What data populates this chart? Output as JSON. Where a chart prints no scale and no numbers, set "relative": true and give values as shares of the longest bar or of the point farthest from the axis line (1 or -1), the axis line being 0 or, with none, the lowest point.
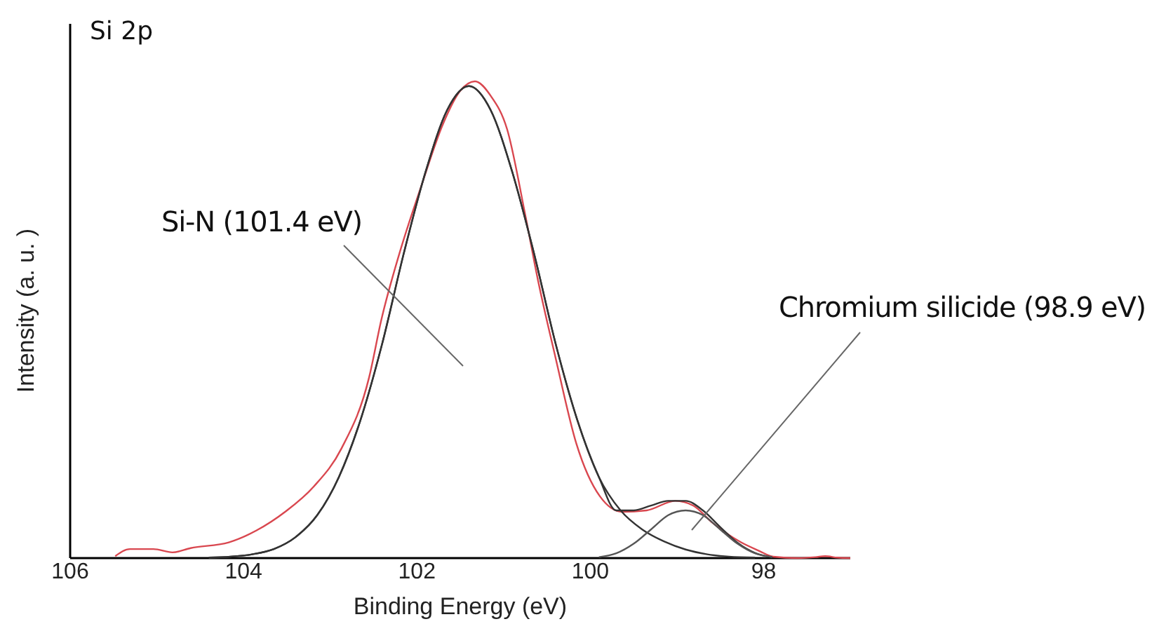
{
  "chart_data": {
    "type": "line",
    "title": "Si 2p",
    "xlabel": "Binding Energy (eV)",
    "ylabel": "Intensity (a. u. )",
    "relative": true,
    "xlim": [
      106,
      97
    ],
    "xticks": [
      106,
      104,
      102,
      100,
      98
    ],
    "line_style": "solid",
    "series": [
      {
        "color": "#d9474f",
        "x": [
          105.48,
          105.31,
          105.04,
          104.82,
          104.61,
          104.17,
          103.85,
          103.52,
          103.19,
          102.87,
          102.55,
          102.41,
          102.2,
          101.95,
          101.7,
          101.5,
          101.33,
          101.15,
          100.96,
          100.75,
          100.6,
          100.4,
          100.16,
          99.89,
          99.63,
          99.35,
          99.02,
          98.81,
          98.59,
          98.26,
          98.05,
          97.89,
          97.6,
          97.4,
          97.29,
          97.15,
          97.0
        ],
        "values": [
          0.004,
          0.019,
          0.019,
          0.012,
          0.021,
          0.033,
          0.058,
          0.097,
          0.15,
          0.23,
          0.38,
          0.5,
          0.64,
          0.78,
          0.91,
          0.98,
          1.0,
          0.97,
          0.9,
          0.72,
          0.58,
          0.42,
          0.24,
          0.13,
          0.097,
          0.1,
          0.12,
          0.11,
          0.074,
          0.033,
          0.015,
          0.003,
          0.0,
          0.002,
          0.004,
          0.001,
          0.0
        ]
      },
      {
        "color": "#333333",
        "x": [
          104.4,
          104.15,
          103.9,
          103.65,
          103.4,
          103.15,
          102.9,
          102.65,
          102.4,
          102.15,
          101.9,
          101.65,
          101.4,
          101.15,
          100.9,
          100.65,
          100.4,
          100.15,
          99.9,
          99.7,
          99.5,
          99.3,
          99.1,
          98.9,
          98.7,
          98.5,
          98.3,
          98.1,
          97.9
        ],
        "values": [
          0.001,
          0.003,
          0.008,
          0.019,
          0.044,
          0.09,
          0.17,
          0.29,
          0.45,
          0.64,
          0.81,
          0.94,
          0.99,
          0.94,
          0.81,
          0.64,
          0.45,
          0.29,
          0.17,
          0.1,
          0.1,
          0.11,
          0.12,
          0.12,
          0.1,
          0.065,
          0.032,
          0.011,
          0.002
        ]
      },
      {
        "color": "#333333",
        "x": [
          104.4,
          104.15,
          103.9,
          103.65,
          103.4,
          103.15,
          102.9,
          102.65,
          102.4,
          102.15,
          101.9,
          101.65,
          101.4,
          101.15,
          100.9,
          100.65,
          100.4,
          100.15,
          99.9,
          99.65,
          99.4,
          99.15,
          98.9,
          98.65,
          98.4,
          98.1
        ],
        "values": [
          0.001,
          0.003,
          0.008,
          0.019,
          0.044,
          0.09,
          0.17,
          0.29,
          0.45,
          0.64,
          0.81,
          0.94,
          0.99,
          0.94,
          0.81,
          0.64,
          0.45,
          0.29,
          0.17,
          0.1,
          0.06,
          0.035,
          0.018,
          0.008,
          0.003,
          0.001
        ]
      },
      {
        "color": "#555555",
        "x": [
          99.9,
          99.7,
          99.5,
          99.3,
          99.1,
          98.9,
          98.7,
          98.5,
          98.3,
          98.1,
          97.9
        ],
        "values": [
          0.002,
          0.01,
          0.03,
          0.06,
          0.09,
          0.1,
          0.09,
          0.06,
          0.03,
          0.01,
          0.002
        ]
      }
    ],
    "annotations": [
      "Si-N (101.4 eV)",
      "Chromium silicide (98.9 eV)"
    ]
  }
}
